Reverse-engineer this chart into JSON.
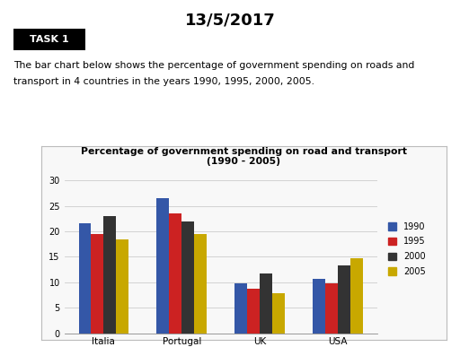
{
  "title_date": "13/5/2017",
  "task_label": "TASK 1",
  "description_line1": "The bar chart below shows the percentage of government spending on roads and",
  "description_line2": "transport in 4 countries in the years 1990, 1995, 2000, 2005.",
  "chart_title_line1": "Percentage of government spending on road and transport",
  "chart_title_line2": "(1990 - 2005)",
  "countries": [
    "Italia",
    "Portugal",
    "UK",
    "USA"
  ],
  "years": [
    "1990",
    "1995",
    "2000",
    "2005"
  ],
  "colors": [
    "#3457a7",
    "#cc2222",
    "#333333",
    "#c8a800"
  ],
  "data": {
    "Italia": [
      21.5,
      19.5,
      23.0,
      18.5
    ],
    "Portugal": [
      26.5,
      23.5,
      22.0,
      19.5
    ],
    "UK": [
      9.8,
      8.7,
      11.7,
      7.8
    ],
    "USA": [
      10.7,
      9.8,
      13.3,
      14.8
    ]
  },
  "ylim": [
    0,
    30
  ],
  "yticks": [
    0,
    5,
    10,
    15,
    20,
    25,
    30
  ],
  "background_color": "#ffffff"
}
